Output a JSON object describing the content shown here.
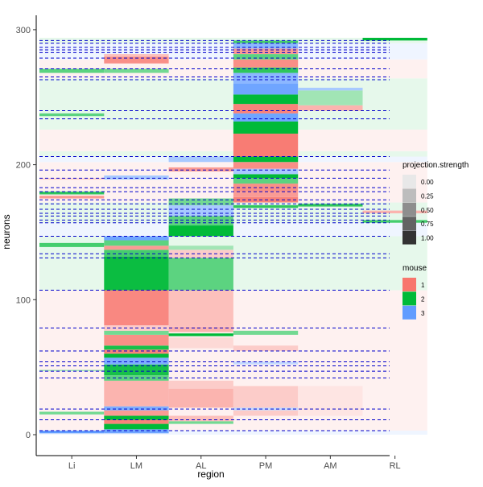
{
  "chart_data": {
    "type": "heatmap",
    "xlabel": "region",
    "ylabel": "neurons",
    "categories": [
      "Li",
      "LM",
      "AL",
      "PM",
      "AM",
      "RL"
    ],
    "ylim": [
      -4,
      311
    ],
    "yticks": [
      0,
      100,
      200,
      300
    ],
    "legend_position": "right",
    "grid": false,
    "mouse_colors": {
      "1": "#F8766D",
      "2": "#00BA38",
      "3": "#619CFF"
    },
    "legends": [
      {
        "title": "projection.strength",
        "items": [
          {
            "label": "0.00",
            "color": "#E8E8E8"
          },
          {
            "label": "0.25",
            "color": "#BDBDBD"
          },
          {
            "label": "0.50",
            "color": "#8E8E8E"
          },
          {
            "label": "0.75",
            "color": "#636363"
          },
          {
            "label": "1.00",
            "color": "#333333"
          }
        ]
      },
      {
        "title": "mouse",
        "items": [
          {
            "label": "1",
            "color": "#F8766D"
          },
          {
            "label": "2",
            "color": "#00BA38"
          },
          {
            "label": "3",
            "color": "#619CFF"
          }
        ]
      }
    ],
    "background_bands": [
      {
        "from": 0,
        "to": 3,
        "mouse": 3
      },
      {
        "from": 3,
        "to": 107,
        "mouse": 1
      },
      {
        "from": 107,
        "to": 147,
        "mouse": 2
      },
      {
        "from": 147,
        "to": 157,
        "mouse": 3
      },
      {
        "from": 157,
        "to": 172,
        "mouse": 2
      },
      {
        "from": 172,
        "to": 202,
        "mouse": 1
      },
      {
        "from": 202,
        "to": 206,
        "mouse": 3
      },
      {
        "from": 206,
        "to": 210,
        "mouse": 2
      },
      {
        "from": 210,
        "to": 226,
        "mouse": 1
      },
      {
        "from": 226,
        "to": 264,
        "mouse": 2
      },
      {
        "from": 264,
        "to": 278,
        "mouse": 1
      },
      {
        "from": 278,
        "to": 290,
        "mouse": 3
      },
      {
        "from": 290,
        "to": 294,
        "mouse": 2
      }
    ],
    "cells": [
      {
        "region": "Li",
        "from": 1,
        "to": 3,
        "mouse": 3,
        "strength": 1.0
      },
      {
        "region": "Li",
        "from": 15,
        "to": 17,
        "mouse": 2,
        "strength": 0.5
      },
      {
        "region": "Li",
        "from": 47,
        "to": 48,
        "mouse": 2,
        "strength": 0.3
      },
      {
        "region": "Li",
        "from": 139,
        "to": 142,
        "mouse": 2,
        "strength": 0.7
      },
      {
        "region": "Li",
        "from": 175,
        "to": 177,
        "mouse": 1,
        "strength": 0.7
      },
      {
        "region": "Li",
        "from": 178,
        "to": 180,
        "mouse": 2,
        "strength": 0.8
      },
      {
        "region": "Li",
        "from": 189,
        "to": 190,
        "mouse": 1,
        "strength": 0.3
      },
      {
        "region": "Li",
        "from": 236,
        "to": 238,
        "mouse": 2,
        "strength": 0.6
      },
      {
        "region": "Li",
        "from": 268,
        "to": 271,
        "mouse": 2,
        "strength": 0.6
      },
      {
        "region": "LM",
        "from": 1,
        "to": 4,
        "mouse": 3,
        "strength": 0.9
      },
      {
        "region": "LM",
        "from": 4,
        "to": 8,
        "mouse": 2,
        "strength": 1.0
      },
      {
        "region": "LM",
        "from": 8,
        "to": 11,
        "mouse": 1,
        "strength": 0.9
      },
      {
        "region": "LM",
        "from": 11,
        "to": 14,
        "mouse": 2,
        "strength": 1.0
      },
      {
        "region": "LM",
        "from": 14,
        "to": 18,
        "mouse": 1,
        "strength": 0.7
      },
      {
        "region": "LM",
        "from": 18,
        "to": 21,
        "mouse": 3,
        "strength": 0.8
      },
      {
        "region": "LM",
        "from": 21,
        "to": 40,
        "mouse": 1,
        "strength": 0.5
      },
      {
        "region": "LM",
        "from": 40,
        "to": 44,
        "mouse": 2,
        "strength": 0.6
      },
      {
        "region": "LM",
        "from": 44,
        "to": 52,
        "mouse": 2,
        "strength": 0.9
      },
      {
        "region": "LM",
        "from": 52,
        "to": 57,
        "mouse": 3,
        "strength": 0.8
      },
      {
        "region": "LM",
        "from": 57,
        "to": 60,
        "mouse": 2,
        "strength": 1.0
      },
      {
        "region": "LM",
        "from": 60,
        "to": 63,
        "mouse": 1,
        "strength": 0.9
      },
      {
        "region": "LM",
        "from": 63,
        "to": 66,
        "mouse": 2,
        "strength": 0.9
      },
      {
        "region": "LM",
        "from": 66,
        "to": 74,
        "mouse": 1,
        "strength": 0.8
      },
      {
        "region": "LM",
        "from": 74,
        "to": 77,
        "mouse": 2,
        "strength": 0.5
      },
      {
        "region": "LM",
        "from": 77,
        "to": 81,
        "mouse": 1,
        "strength": 0.3
      },
      {
        "region": "LM",
        "from": 81,
        "to": 107,
        "mouse": 1,
        "strength": 0.85
      },
      {
        "region": "LM",
        "from": 107,
        "to": 132,
        "mouse": 2,
        "strength": 0.95
      },
      {
        "region": "LM",
        "from": 132,
        "to": 137,
        "mouse": 2,
        "strength": 0.7
      },
      {
        "region": "LM",
        "from": 137,
        "to": 140,
        "mouse": 1,
        "strength": 0.7
      },
      {
        "region": "LM",
        "from": 140,
        "to": 144,
        "mouse": 2,
        "strength": 0.6
      },
      {
        "region": "LM",
        "from": 144,
        "to": 147,
        "mouse": 3,
        "strength": 0.9
      },
      {
        "region": "LM",
        "from": 189,
        "to": 192,
        "mouse": 3,
        "strength": 0.5
      },
      {
        "region": "LM",
        "from": 268,
        "to": 271,
        "mouse": 2,
        "strength": 0.5
      },
      {
        "region": "LM",
        "from": 275,
        "to": 280,
        "mouse": 1,
        "strength": 0.8
      },
      {
        "region": "LM",
        "from": 280,
        "to": 282,
        "mouse": 1,
        "strength": 0.4
      },
      {
        "region": "AL",
        "from": 8,
        "to": 10,
        "mouse": 2,
        "strength": 0.5
      },
      {
        "region": "AL",
        "from": 10,
        "to": 14,
        "mouse": 1,
        "strength": 0.4
      },
      {
        "region": "AL",
        "from": 20,
        "to": 34,
        "mouse": 1,
        "strength": 0.5
      },
      {
        "region": "AL",
        "from": 34,
        "to": 40,
        "mouse": 1,
        "strength": 0.3
      },
      {
        "region": "AL",
        "from": 64,
        "to": 72,
        "mouse": 1,
        "strength": 0.2
      },
      {
        "region": "AL",
        "from": 73,
        "to": 75,
        "mouse": 2,
        "strength": 1.0
      },
      {
        "region": "AL",
        "from": 76,
        "to": 80,
        "mouse": 1,
        "strength": 0.5
      },
      {
        "region": "AL",
        "from": 80,
        "to": 107,
        "mouse": 1,
        "strength": 0.4
      },
      {
        "region": "AL",
        "from": 107,
        "to": 131,
        "mouse": 2,
        "strength": 0.6
      },
      {
        "region": "AL",
        "from": 131,
        "to": 137,
        "mouse": 1,
        "strength": 0.3
      },
      {
        "region": "AL",
        "from": 137,
        "to": 140,
        "mouse": 2,
        "strength": 0.3
      },
      {
        "region": "AL",
        "from": 147,
        "to": 155,
        "mouse": 2,
        "strength": 1.0
      },
      {
        "region": "AL",
        "from": 155,
        "to": 162,
        "mouse": 2,
        "strength": 0.6
      },
      {
        "region": "AL",
        "from": 162,
        "to": 170,
        "mouse": 3,
        "strength": 0.5
      },
      {
        "region": "AL",
        "from": 170,
        "to": 175,
        "mouse": 2,
        "strength": 0.5
      },
      {
        "region": "AL",
        "from": 195,
        "to": 198,
        "mouse": 1,
        "strength": 0.7
      },
      {
        "region": "AL",
        "from": 202,
        "to": 206,
        "mouse": 3,
        "strength": 0.5
      },
      {
        "region": "PM",
        "from": 14,
        "to": 18,
        "mouse": 1,
        "strength": 0.3
      },
      {
        "region": "PM",
        "from": 18,
        "to": 20,
        "mouse": 3,
        "strength": 0.3
      },
      {
        "region": "PM",
        "from": 20,
        "to": 36,
        "mouse": 1,
        "strength": 0.3
      },
      {
        "region": "PM",
        "from": 52,
        "to": 54,
        "mouse": 3,
        "strength": 0.3
      },
      {
        "region": "PM",
        "from": 62,
        "to": 66,
        "mouse": 1,
        "strength": 0.3
      },
      {
        "region": "PM",
        "from": 74,
        "to": 77,
        "mouse": 2,
        "strength": 0.5
      },
      {
        "region": "PM",
        "from": 168,
        "to": 170,
        "mouse": 2,
        "strength": 0.8
      },
      {
        "region": "PM",
        "from": 172,
        "to": 176,
        "mouse": 1,
        "strength": 0.9
      },
      {
        "region": "PM",
        "from": 176,
        "to": 180,
        "mouse": 1,
        "strength": 0.7
      },
      {
        "region": "PM",
        "from": 180,
        "to": 186,
        "mouse": 1,
        "strength": 0.8
      },
      {
        "region": "PM",
        "from": 186,
        "to": 190,
        "mouse": 2,
        "strength": 0.6
      },
      {
        "region": "PM",
        "from": 190,
        "to": 193,
        "mouse": 2,
        "strength": 1.0
      },
      {
        "region": "PM",
        "from": 193,
        "to": 197,
        "mouse": 3,
        "strength": 0.5
      },
      {
        "region": "PM",
        "from": 197,
        "to": 202,
        "mouse": 1,
        "strength": 0.8
      },
      {
        "region": "PM",
        "from": 202,
        "to": 206,
        "mouse": 2,
        "strength": 1.0
      },
      {
        "region": "PM",
        "from": 206,
        "to": 223,
        "mouse": 1,
        "strength": 0.95
      },
      {
        "region": "PM",
        "from": 223,
        "to": 232,
        "mouse": 2,
        "strength": 1.0
      },
      {
        "region": "PM",
        "from": 232,
        "to": 238,
        "mouse": 3,
        "strength": 0.9
      },
      {
        "region": "PM",
        "from": 238,
        "to": 245,
        "mouse": 1,
        "strength": 0.9
      },
      {
        "region": "PM",
        "from": 245,
        "to": 252,
        "mouse": 2,
        "strength": 1.0
      },
      {
        "region": "PM",
        "from": 252,
        "to": 260,
        "mouse": 3,
        "strength": 0.9
      },
      {
        "region": "PM",
        "from": 260,
        "to": 268,
        "mouse": 3,
        "strength": 0.7
      },
      {
        "region": "PM",
        "from": 268,
        "to": 272,
        "mouse": 2,
        "strength": 0.8
      },
      {
        "region": "PM",
        "from": 272,
        "to": 278,
        "mouse": 1,
        "strength": 0.8
      },
      {
        "region": "PM",
        "from": 278,
        "to": 282,
        "mouse": 2,
        "strength": 0.6
      },
      {
        "region": "PM",
        "from": 282,
        "to": 286,
        "mouse": 1,
        "strength": 0.7
      },
      {
        "region": "PM",
        "from": 286,
        "to": 290,
        "mouse": 3,
        "strength": 0.7
      },
      {
        "region": "PM",
        "from": 290,
        "to": 292,
        "mouse": 2,
        "strength": 0.7
      },
      {
        "region": "AM",
        "from": 14,
        "to": 36,
        "mouse": 1,
        "strength": 0.1
      },
      {
        "region": "AM",
        "from": 169,
        "to": 171,
        "mouse": 2,
        "strength": 0.8
      },
      {
        "region": "AM",
        "from": 240,
        "to": 244,
        "mouse": 1,
        "strength": 0.5
      },
      {
        "region": "AM",
        "from": 244,
        "to": 255,
        "mouse": 2,
        "strength": 0.3
      },
      {
        "region": "AM",
        "from": 255,
        "to": 257,
        "mouse": 3,
        "strength": 0.5
      },
      {
        "region": "RL",
        "from": 157,
        "to": 159,
        "mouse": 2,
        "strength": 0.7
      },
      {
        "region": "RL",
        "from": 164,
        "to": 166,
        "mouse": 1,
        "strength": 0.5
      },
      {
        "region": "RL",
        "from": 292,
        "to": 294,
        "mouse": 2,
        "strength": 1.0
      }
    ],
    "dashed_lines": [
      3,
      11,
      19,
      42,
      47,
      51,
      54,
      62,
      79,
      107,
      131,
      134,
      147,
      157,
      159,
      162,
      164,
      167,
      171,
      174,
      180,
      183,
      190,
      196,
      206,
      234,
      240,
      263,
      265,
      271,
      279,
      283,
      285,
      287,
      290,
      292
    ]
  }
}
